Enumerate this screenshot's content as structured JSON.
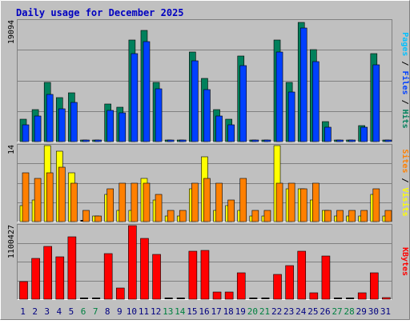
{
  "chart_data": {
    "type": "bar",
    "title": "Daily usage for December 2025",
    "colors": {
      "background": "#c0c0c0",
      "frame_light": "#ffffff",
      "frame_dark": "#808080",
      "title": "#0000c0",
      "grid": "#808080",
      "hits": "#00805c",
      "files": "#0040ff",
      "pages": "#00c0ff",
      "visits": "#ffff00",
      "sites": "#ff8000",
      "kbytes": "#ff0000",
      "weekday_label": "#000080",
      "weekend_label": "#008040",
      "axis_label": "#000000"
    },
    "categories": [
      "1",
      "2",
      "3",
      "4",
      "5",
      "6",
      "7",
      "8",
      "9",
      "10",
      "11",
      "12",
      "13",
      "14",
      "15",
      "16",
      "17",
      "18",
      "19",
      "20",
      "21",
      "22",
      "23",
      "24",
      "25",
      "26",
      "27",
      "28",
      "29",
      "30",
      "31"
    ],
    "weekend_days": [
      "6",
      "7",
      "13",
      "14",
      "20",
      "21",
      "27",
      "28"
    ],
    "panels": [
      {
        "id": "hits-files-pages",
        "ymax_label": "19094",
        "ymax": 19094,
        "legend": [
          {
            "text": "Pages",
            "color": "#00c0ff"
          },
          {
            "text": " / ",
            "color": "#000000"
          },
          {
            "text": "Files",
            "color": "#0040ff"
          },
          {
            "text": " / ",
            "color": "#000000"
          },
          {
            "text": "Hits",
            "color": "#00805c"
          }
        ],
        "series": [
          {
            "name": "Hits",
            "color": "#00805c",
            "values": [
              3600,
              5100,
              9300,
              7000,
              7700,
              250,
              200,
              6000,
              5400,
              16100,
              17600,
              9300,
              200,
              200,
              14100,
              10000,
              5000,
              3600,
              13500,
              250,
              200,
              16100,
              9300,
              18900,
              14600,
              3100,
              200,
              200,
              2500,
              13900,
              300
            ]
          },
          {
            "name": "Files",
            "color": "#0040ff",
            "values": [
              2600,
              4000,
              7500,
              5200,
              6200,
              120,
              100,
              4900,
              4500,
              13900,
              15800,
              8300,
              100,
              100,
              12800,
              8200,
              4100,
              2700,
              12000,
              120,
              100,
              14100,
              7900,
              18000,
              12700,
              2300,
              100,
              100,
              2300,
              12200,
              150
            ]
          }
        ]
      },
      {
        "id": "visits-sites",
        "ymax_label": "14",
        "ymax": 14,
        "legend": [
          {
            "text": "Sites",
            "color": "#ff8000"
          },
          {
            "text": " / ",
            "color": "#000000"
          },
          {
            "text": "Visits",
            "color": "#ffff00"
          }
        ],
        "series": [
          {
            "name": "Visits",
            "color": "#ffff00",
            "values": [
              3,
              4,
              14,
              13,
              9,
              0,
              1,
              5,
              2,
              2,
              8,
              4,
              1,
              1,
              6,
              12,
              2,
              3,
              2,
              1,
              1,
              14,
              6,
              6,
              4,
              2,
              1,
              1,
              1,
              5,
              1
            ]
          },
          {
            "name": "Sites",
            "color": "#ff8000",
            "values": [
              9,
              8,
              9,
              10,
              7,
              2,
              1,
              6,
              7,
              7,
              7,
              5,
              2,
              2,
              7,
              8,
              7,
              4,
              8,
              2,
              2,
              7,
              7,
              6,
              7,
              2,
              2,
              2,
              2,
              6,
              2
            ]
          }
        ]
      },
      {
        "id": "kbytes",
        "ymax_label": "1100427",
        "ymax": 1100427,
        "legend": [
          {
            "text": "KBytes",
            "color": "#ff0000"
          }
        ],
        "series": [
          {
            "name": "KBytes",
            "color": "#ff0000",
            "values": [
              260000,
              605000,
              785000,
              630000,
              935000,
              0,
              0,
              685000,
              170000,
              1100427,
              910000,
              670000,
              0,
              0,
              720000,
              725000,
              110000,
              110000,
              390000,
              0,
              0,
              370000,
              500000,
              715000,
              90000,
              650000,
              0,
              0,
              90000,
              400000,
              20000
            ]
          }
        ]
      }
    ]
  }
}
